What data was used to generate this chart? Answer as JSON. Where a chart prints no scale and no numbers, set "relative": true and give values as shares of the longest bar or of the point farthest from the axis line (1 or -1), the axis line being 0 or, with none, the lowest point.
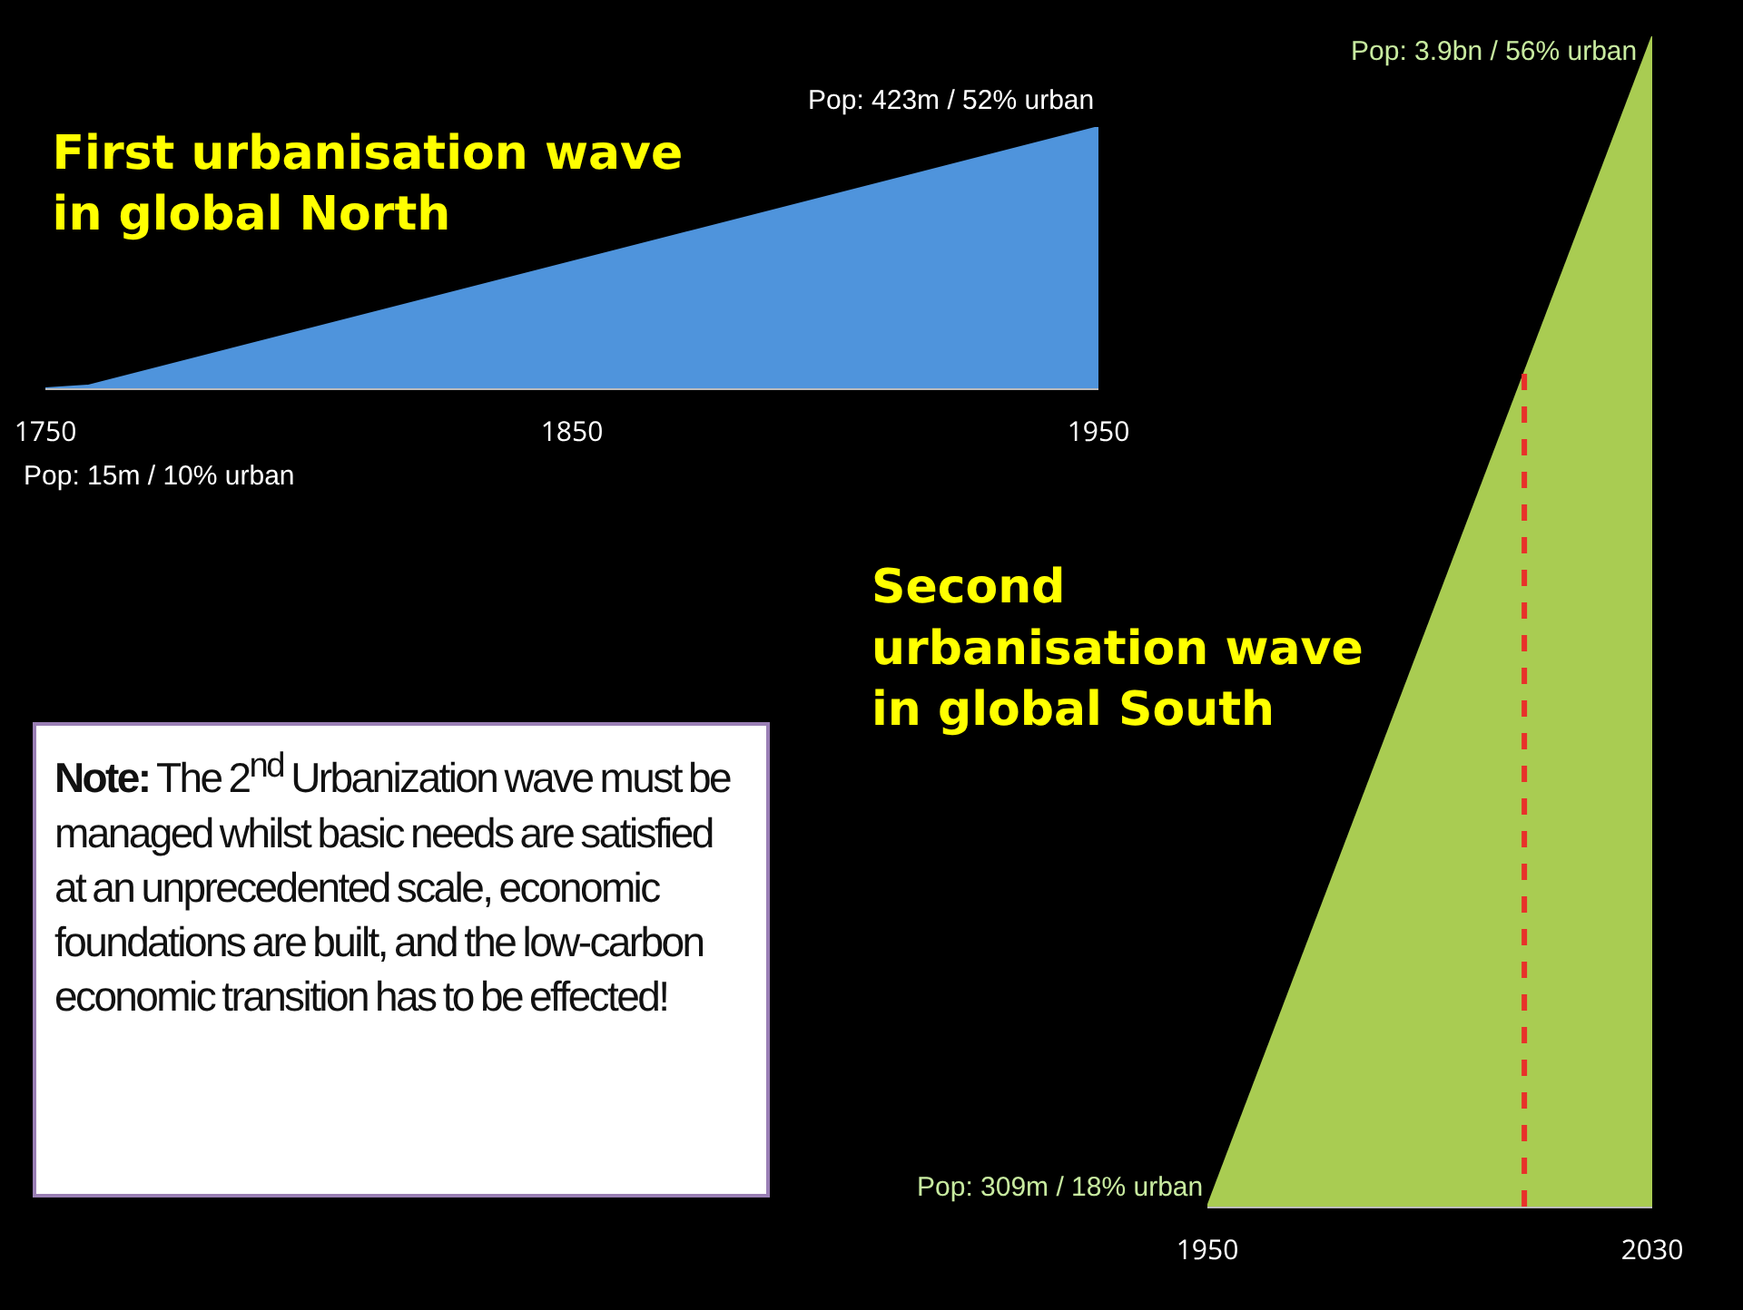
{
  "chart_data": [
    {
      "type": "area",
      "title": "First urbanisation wave\nin global North",
      "relative": true,
      "x": [
        1750,
        1758,
        1950
      ],
      "xlim": [
        1750,
        1950
      ],
      "xticks": [
        1750,
        1850,
        1950
      ],
      "series": [
        {
          "color": "#4f94dc",
          "values": [
            0,
            0.01,
            1
          ]
        }
      ],
      "annotations": [
        {
          "text": "Pop: 15m / 10% urban",
          "x": 1750,
          "y": 0
        },
        {
          "text": "Pop: 423m / 52% urban",
          "x": 1950,
          "y": 1
        }
      ]
    },
    {
      "type": "area",
      "title": "Second\nurbanisation wave\nin global South",
      "relative": true,
      "x": [
        1950,
        2030
      ],
      "xlim": [
        1950,
        2030
      ],
      "xticks": [
        1950,
        2030
      ],
      "series": [
        {
          "color": "#a9cc52",
          "values": [
            0,
            1
          ]
        }
      ],
      "ref_lines": [
        {
          "axis": "x",
          "value": 2007,
          "color": "#e8312a",
          "line_style": "dashed"
        }
      ],
      "annotations": [
        {
          "text": "Pop: 309m / 18% urban",
          "x": 1950,
          "y": 0
        },
        {
          "text": "Pop: 3.9bn / 56% urban",
          "x": 2030,
          "y": 1
        }
      ]
    },
    {
      "type": "other",
      "title": "Note:",
      "annotations": [
        "The 2$^{nd}$ Urbanization wave must be managed whilst basic needs are satisfied at an unprecedented scale, economic foundations are built, and the low-carbon economic transition has to be effected!"
      ]
    }
  ]
}
